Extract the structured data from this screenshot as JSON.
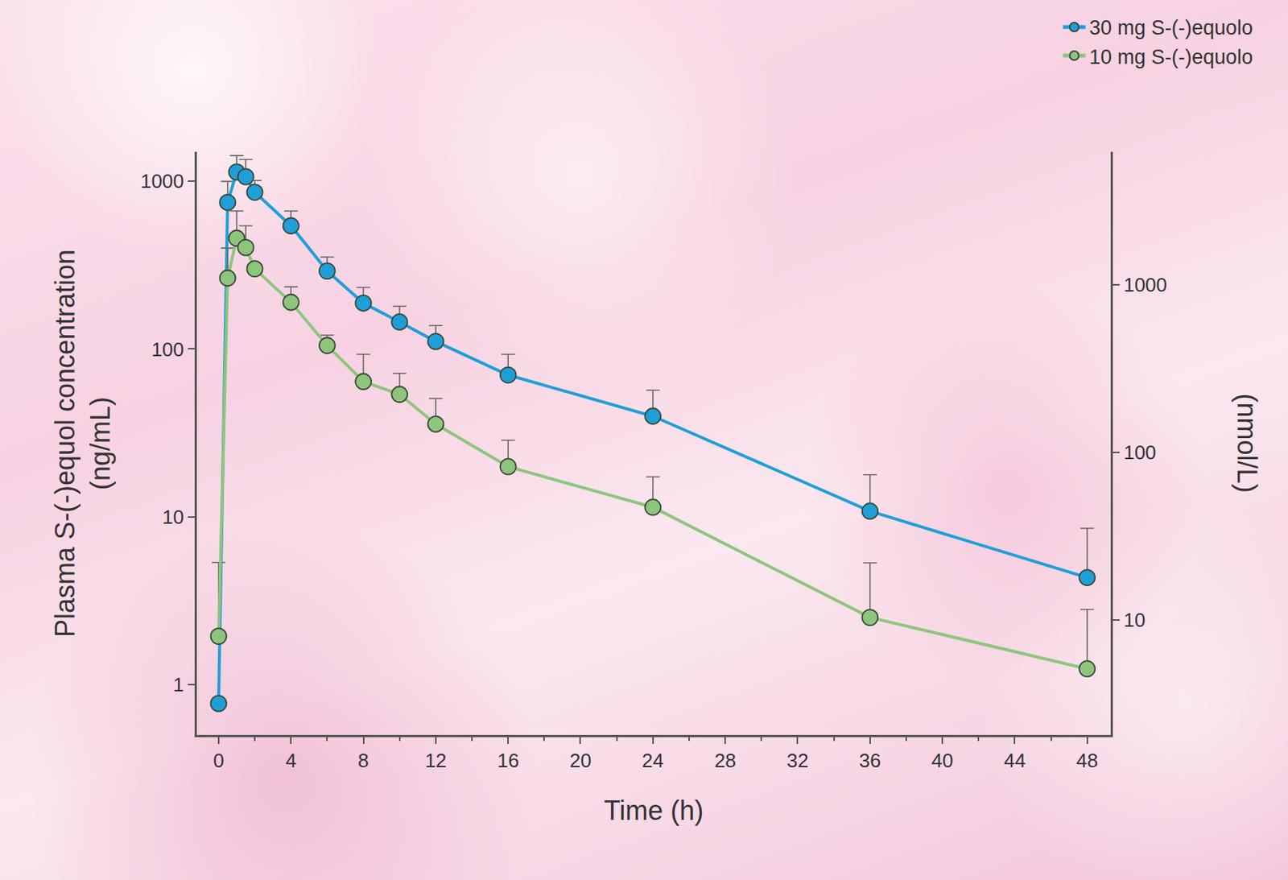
{
  "chart_data": {
    "type": "line",
    "x_label": "Time (h)",
    "y_label": "Plasma S-(-)equol concentration (ng/mL)",
    "y2_label": "(nmol/L)",
    "log": "y",
    "grid": false,
    "legend": "top right",
    "x": [
      0,
      0.5,
      1,
      1.5,
      2,
      4,
      6,
      8,
      10,
      12,
      16,
      24,
      36,
      48
    ],
    "xlim": [
      -1.2,
      49.3
    ],
    "xticks": [
      0,
      4,
      8,
      12,
      16,
      20,
      24,
      28,
      32,
      36,
      40,
      44,
      48
    ],
    "ylim": [
      0.5,
      1500
    ],
    "yticks": [
      1,
      10,
      100,
      1000
    ],
    "y2lim": [
      2.064,
      6192
    ],
    "y2ticks": [
      10,
      100,
      1000
    ],
    "series": [
      {
        "name": "30 mg S-(-)equolo",
        "color": "#1f9fd8",
        "marker": "circle",
        "values": [
          0.77,
          749,
          1137,
          1066,
          861,
          543,
          292,
          188,
          145,
          111,
          70,
          39.8,
          10.8,
          4.34
        ],
        "errors": [
          0,
          250,
          286,
          284,
          150,
          123,
          62,
          45,
          35,
          27,
          23,
          17,
          7,
          4.2
        ]
      },
      {
        "name": "10 mg S-(-)equolo",
        "color": "#8ec57c",
        "marker": "circle",
        "values": [
          1.94,
          265,
          458,
          403,
          301,
          190,
          105,
          64,
          53.7,
          35.7,
          19.9,
          11.4,
          2.51,
          1.24
        ],
        "errors": [
          3.4,
          135,
          208,
          140,
          0,
          45,
          16,
          29,
          18,
          15,
          8.7,
          5.9,
          2.8,
          1.56
        ]
      }
    ]
  }
}
